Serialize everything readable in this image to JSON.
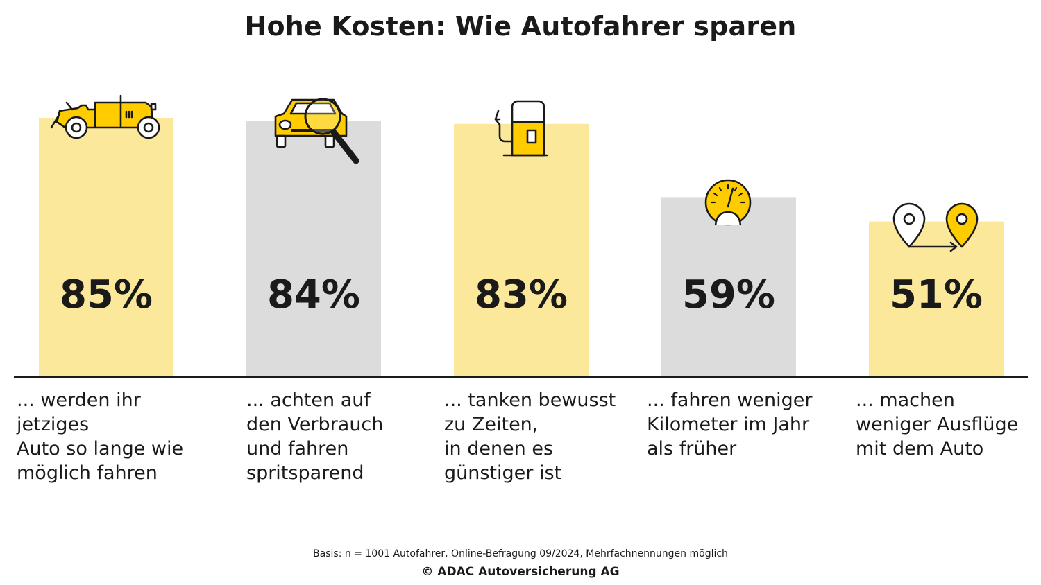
{
  "chart_data": {
    "type": "bar",
    "title": "Hohe Kosten: Wie Autofahrer sparen",
    "categories": [
      "... werden ihr jetziges Auto so lange wie möglich fahren",
      "... achten auf den Verbrauch und fahren spritsparend",
      "... tanken bewusst zu Zeiten, in denen es günstiger ist",
      "... fahren weniger Kilometer im Jahr als früher",
      "... machen weniger Ausflüge mit dem Auto"
    ],
    "category_lines": [
      [
        "... werden ihr",
        "jetziges",
        "Auto so lange wie",
        "möglich fahren"
      ],
      [
        "... achten auf",
        "den Verbrauch",
        "und fahren",
        "spritsparend"
      ],
      [
        "... tanken bewusst",
        "zu Zeiten,",
        "in denen es",
        "günstiger ist"
      ],
      [
        "... fahren weniger",
        "Kilometer im Jahr",
        "als früher"
      ],
      [
        "... machen",
        "weniger Ausflüge",
        "mit dem Auto"
      ]
    ],
    "values": [
      85,
      84,
      83,
      59,
      51
    ],
    "value_labels": [
      "85%",
      "84%",
      "83%",
      "59%",
      "51%"
    ],
    "ylim": [
      0,
      100
    ],
    "grid": false,
    "legend": "none",
    "icons": [
      "vintage-car-icon",
      "car-magnifier-icon",
      "fuel-pump-icon",
      "speedometer-icon",
      "route-pins-icon"
    ],
    "bar_colors": [
      "#fbe89a",
      "#dcdcdc",
      "#fbe89a",
      "#dcdcdc",
      "#fbe89a"
    ],
    "accent_color": "#ffcc00"
  },
  "footnote": "Basis: n = 1001 Autofahrer, Online-Befragung 09/2024, Mehrfachnennungen möglich",
  "copyright": "© ADAC Autoversicherung AG"
}
